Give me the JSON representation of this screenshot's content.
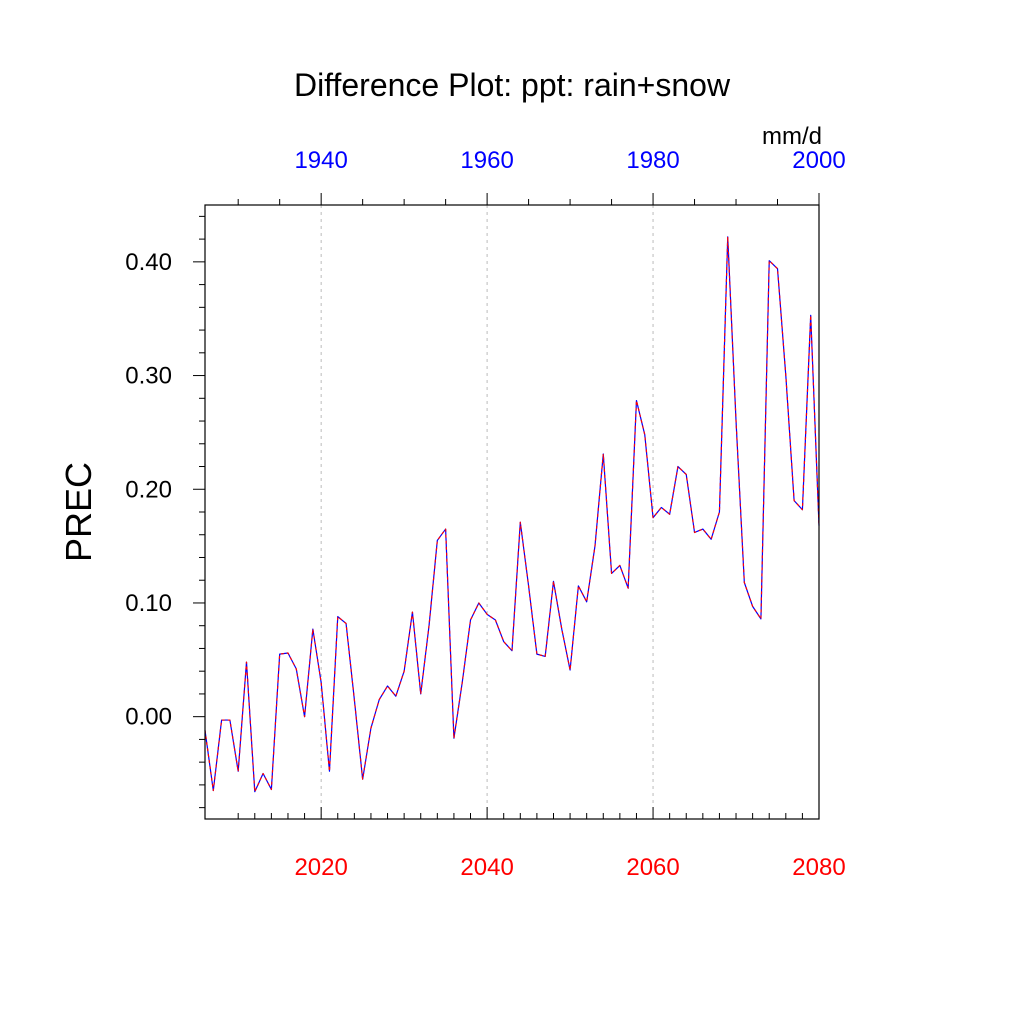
{
  "chart_data": {
    "type": "line",
    "title": "Difference Plot: ppt: rain+snow",
    "ylabel": "PREC",
    "units": "mm/d",
    "colors": {
      "bottom_axis": "#ff0000",
      "top_axis": "#0000ff",
      "line_a": "#0000ff",
      "line_b": "#ff0000",
      "grid": "#bbbbbb"
    },
    "xlim": [
      2006,
      2080
    ],
    "ylim": [
      -0.09,
      0.45
    ],
    "bottom_ticks": [
      2020,
      2040,
      2060,
      2080
    ],
    "bottom_tick_labels": [
      "2020",
      "2040",
      "2060",
      "2080"
    ],
    "top_ticks": [
      1940,
      1960,
      1980,
      2000
    ],
    "top_tick_labels": [
      "1940",
      "1960",
      "1980",
      "2000"
    ],
    "top_axis_offset_years": 80,
    "y_ticks": [
      0.0,
      0.1,
      0.2,
      0.3,
      0.4
    ],
    "y_tick_labels": [
      "0.00",
      "0.10",
      "0.20",
      "0.30",
      "0.40"
    ],
    "grid": "vertical dashed",
    "x": [
      2006,
      2007,
      2008,
      2009,
      2010,
      2011,
      2012,
      2013,
      2014,
      2015,
      2016,
      2017,
      2018,
      2019,
      2020,
      2021,
      2022,
      2023,
      2024,
      2025,
      2026,
      2027,
      2028,
      2029,
      2030,
      2031,
      2032,
      2033,
      2034,
      2035,
      2036,
      2037,
      2038,
      2039,
      2040,
      2041,
      2042,
      2043,
      2044,
      2045,
      2046,
      2047,
      2048,
      2049,
      2050,
      2051,
      2052,
      2053,
      2054,
      2055,
      2056,
      2057,
      2058,
      2059,
      2060,
      2061,
      2062,
      2063,
      2064,
      2065,
      2066,
      2067,
      2068,
      2069,
      2070,
      2071,
      2072,
      2073,
      2074,
      2075,
      2076,
      2077,
      2078,
      2079,
      2080
    ],
    "series": [
      {
        "values": [
          -0.012,
          -0.065,
          -0.003,
          -0.003,
          -0.048,
          0.048,
          -0.066,
          -0.05,
          -0.064,
          0.055,
          0.056,
          0.042,
          0.0,
          0.077,
          0.03,
          -0.048,
          0.088,
          0.082,
          0.015,
          -0.055,
          -0.01,
          0.015,
          0.027,
          0.018,
          0.04,
          0.092,
          0.02,
          0.08,
          0.155,
          0.165,
          -0.019,
          0.03,
          0.085,
          0.1,
          0.09,
          0.085,
          0.066,
          0.058,
          0.171,
          0.115,
          0.055,
          0.053,
          0.119,
          0.077,
          0.041,
          0.115,
          0.101,
          0.15,
          0.231,
          0.126,
          0.133,
          0.113,
          0.278,
          0.248,
          0.175,
          0.184,
          0.178,
          0.22,
          0.213,
          0.162,
          0.165,
          0.156,
          0.18,
          0.422,
          0.26,
          0.118,
          0.097,
          0.086,
          0.401,
          0.394,
          0.3,
          0.19,
          0.182,
          0.353,
          0.168
        ]
      }
    ]
  }
}
